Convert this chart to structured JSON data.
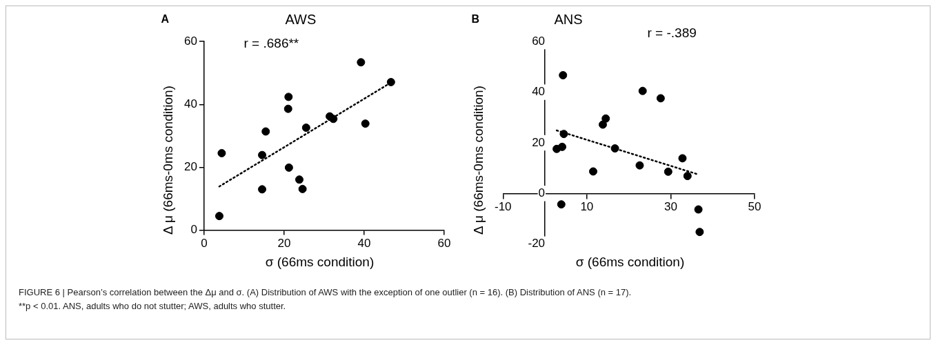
{
  "chart_data": [
    {
      "type": "scatter",
      "title": "AWS",
      "xlabel": "σ (66ms condition)",
      "ylabel": "Δ μ (66ms-0ms condition)",
      "annotations": [
        "A",
        "r = .686**",
        "FIGURE 6 | Pearson’s correlation between the Δμ and σ. (A) Distribution of AWS with the exception of one outlier (n = 16). (B) Distribution of ANS (n = 17).",
        "**p < 0.01. ANS, adults who do not stutter; AWS, adults who stutter."
      ],
      "series": [
        {
          "color": "#000000",
          "x": [
            4.4,
            3.8,
            14.5,
            14.5,
            15.4,
            21.1,
            21.0,
            21.2,
            23.8,
            24.6,
            25.5,
            31.4,
            32.3,
            39.2,
            40.3,
            46.7
          ],
          "values": [
            24.5,
            4.5,
            23.9,
            13.0,
            31.4,
            42.4,
            38.6,
            19.9,
            16.1,
            13.1,
            32.6,
            36.2,
            35.4,
            53.4,
            33.9,
            47.1
          ]
        },
        {
          "type": "line",
          "color": "#000000",
          "line_style": "dotted",
          "marker": "none",
          "x": [
            3.8,
            46.5
          ],
          "values": [
            13.9,
            46.8
          ]
        }
      ],
      "xlim": [
        0,
        60
      ],
      "xticks": [
        0,
        20,
        40,
        60
      ],
      "ylim": [
        0,
        60
      ],
      "yticks": [
        0,
        20,
        40,
        60
      ],
      "marker": "circle",
      "grid": false,
      "legend": false
    },
    {
      "type": "scatter",
      "title": "ANS",
      "xlabel": "σ (66ms condition)",
      "ylabel": "Δ μ (66ms-0ms condition)",
      "annotations": [
        "B",
        "r = -.389"
      ],
      "series": [
        {
          "color": "#000000",
          "x": [
            4.3,
            4.5,
            2.8,
            4.1,
            3.9,
            11.5,
            13.8,
            14.5,
            16.7,
            22.6,
            23.3,
            27.6,
            29.4,
            32.8,
            34.0,
            36.6,
            36.9
          ],
          "values": [
            46.7,
            23.5,
            17.6,
            18.4,
            -4.3,
            8.7,
            27.2,
            29.6,
            17.8,
            11.1,
            40.5,
            37.6,
            8.6,
            13.9,
            6.9,
            -6.3,
            -15.2
          ]
        },
        {
          "type": "line",
          "color": "#000000",
          "line_style": "dotted",
          "marker": "none",
          "x": [
            2.8,
            36.4
          ],
          "values": [
            24.9,
            7.6
          ]
        }
      ],
      "xlim": [
        -10,
        50
      ],
      "xticks": [
        -10,
        10,
        30,
        50
      ],
      "ylim": [
        -20,
        60
      ],
      "yticks": [
        -20,
        0,
        20,
        40,
        60
      ],
      "marker": "circle",
      "grid": false,
      "legend": false
    }
  ]
}
